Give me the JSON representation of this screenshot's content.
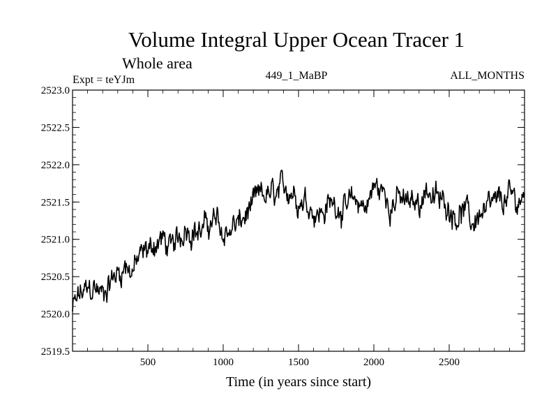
{
  "chart_data": {
    "type": "line",
    "title": "Volume Integral Upper Ocean Tracer 1",
    "subtitle": "Whole area",
    "experiment_label": "Expt = teYJm",
    "run_label": "449_1_MaBP",
    "months_label": "ALL_MONTHS",
    "xlabel": "Time (in years since start)",
    "ylabel": "",
    "xlim": [
      0,
      3000
    ],
    "ylim": [
      2519.5,
      2523.0
    ],
    "x_ticks": [
      500,
      1000,
      1500,
      2000,
      2500
    ],
    "x_tick_labels": [
      "500",
      "1000",
      "1500",
      "2000",
      "2500"
    ],
    "y_ticks": [
      2519.5,
      2520.0,
      2520.5,
      2521.0,
      2521.5,
      2522.0,
      2522.5,
      2523.0
    ],
    "y_tick_labels": [
      "2519.5",
      "2520.0",
      "2520.5",
      "2521.0",
      "2521.5",
      "2522.0",
      "2522.5",
      "2523.0"
    ],
    "grid": false,
    "line_color": "#000000",
    "series": [
      {
        "name": "Tracer 1",
        "x": [
          0,
          50,
          100,
          150,
          200,
          250,
          300,
          350,
          400,
          450,
          500,
          550,
          600,
          650,
          700,
          750,
          800,
          850,
          900,
          950,
          1000,
          1050,
          1100,
          1150,
          1200,
          1250,
          1300,
          1350,
          1400,
          1450,
          1500,
          1550,
          1600,
          1650,
          1700,
          1750,
          1800,
          1850,
          1900,
          1950,
          2000,
          2050,
          2100,
          2150,
          2200,
          2250,
          2300,
          2350,
          2400,
          2450,
          2500,
          2550,
          2600,
          2650,
          2700,
          2750,
          2800,
          2850,
          2900,
          2950,
          3000
        ],
        "y": [
          2520.05,
          2520.25,
          2520.3,
          2520.35,
          2520.25,
          2520.45,
          2520.55,
          2520.65,
          2520.6,
          2520.75,
          2520.85,
          2520.95,
          2521.0,
          2520.85,
          2520.95,
          2521.2,
          2521.15,
          2521.1,
          2521.2,
          2521.25,
          2521.05,
          2521.15,
          2521.2,
          2521.3,
          2521.45,
          2521.55,
          2521.6,
          2521.55,
          2521.65,
          2521.7,
          2521.55,
          2521.55,
          2521.4,
          2521.35,
          2521.45,
          2521.5,
          2521.4,
          2521.45,
          2521.5,
          2521.45,
          2521.7,
          2521.65,
          2521.5,
          2521.55,
          2521.5,
          2521.45,
          2521.5,
          2521.7,
          2521.55,
          2521.5,
          2521.45,
          2521.35,
          2521.4,
          2521.2,
          2521.35,
          2521.35,
          2521.45,
          2521.5,
          2521.55,
          2521.5,
          2521.6
        ]
      }
    ]
  }
}
